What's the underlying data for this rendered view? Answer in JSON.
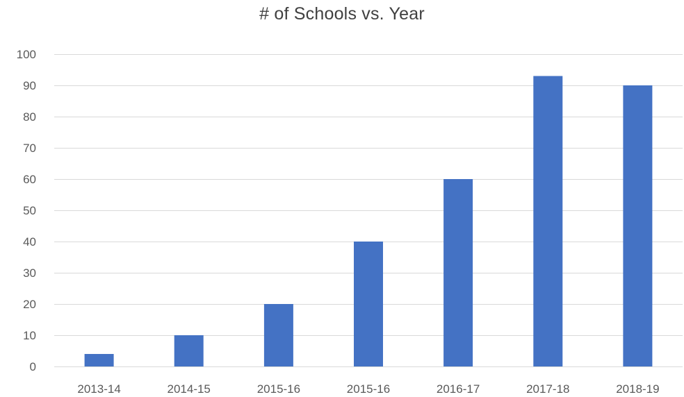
{
  "chart_data": {
    "type": "bar",
    "title": "# of Schools vs. Year",
    "xlabel": "",
    "ylabel": "",
    "categories": [
      "2013-14",
      "2014-15",
      "2015-16",
      "2015-16",
      "2016-17",
      "2017-18",
      "2018-19"
    ],
    "values": [
      4,
      10,
      20,
      40,
      60,
      93,
      90
    ],
    "ylim": [
      0,
      100
    ],
    "yticks": [
      0,
      10,
      20,
      30,
      40,
      50,
      60,
      70,
      80,
      90,
      100
    ],
    "grid": true,
    "legend": "none",
    "bar_color": "#4472c4",
    "grid_color": "#d9d9d9",
    "axis_color": "#d9d9d9"
  }
}
